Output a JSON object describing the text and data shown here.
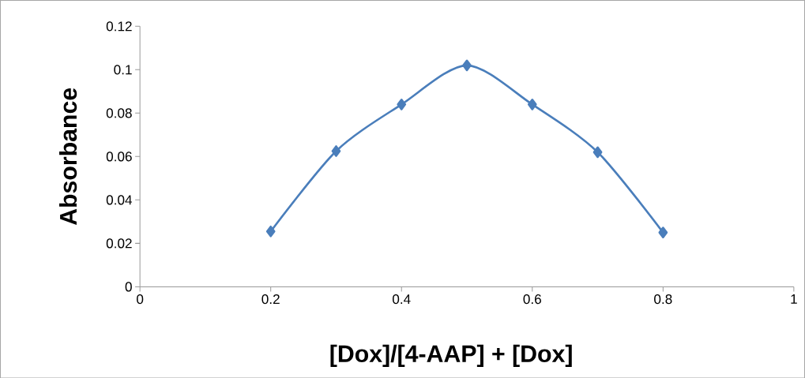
{
  "chart_data": {
    "type": "line",
    "xlabel": "[Dox]/[4-AAP] + [Dox]",
    "ylabel": "Absorbance",
    "x": [
      0.2,
      0.3,
      0.4,
      0.5,
      0.6,
      0.7,
      0.8
    ],
    "series": [
      {
        "color": "#4a7ebb",
        "values": [
          0.0255,
          0.0625,
          0.084,
          0.102,
          0.084,
          0.062,
          0.025
        ]
      }
    ],
    "xlim": [
      0,
      1
    ],
    "xticks": [
      0,
      0.2,
      0.4,
      0.6,
      0.8,
      1
    ],
    "ylim": [
      0,
      0.12
    ],
    "yticks": [
      0,
      0.02,
      0.04,
      0.06,
      0.08,
      0.1,
      0.12
    ],
    "grid": false,
    "marker": "diamond",
    "line_style": "solid"
  }
}
